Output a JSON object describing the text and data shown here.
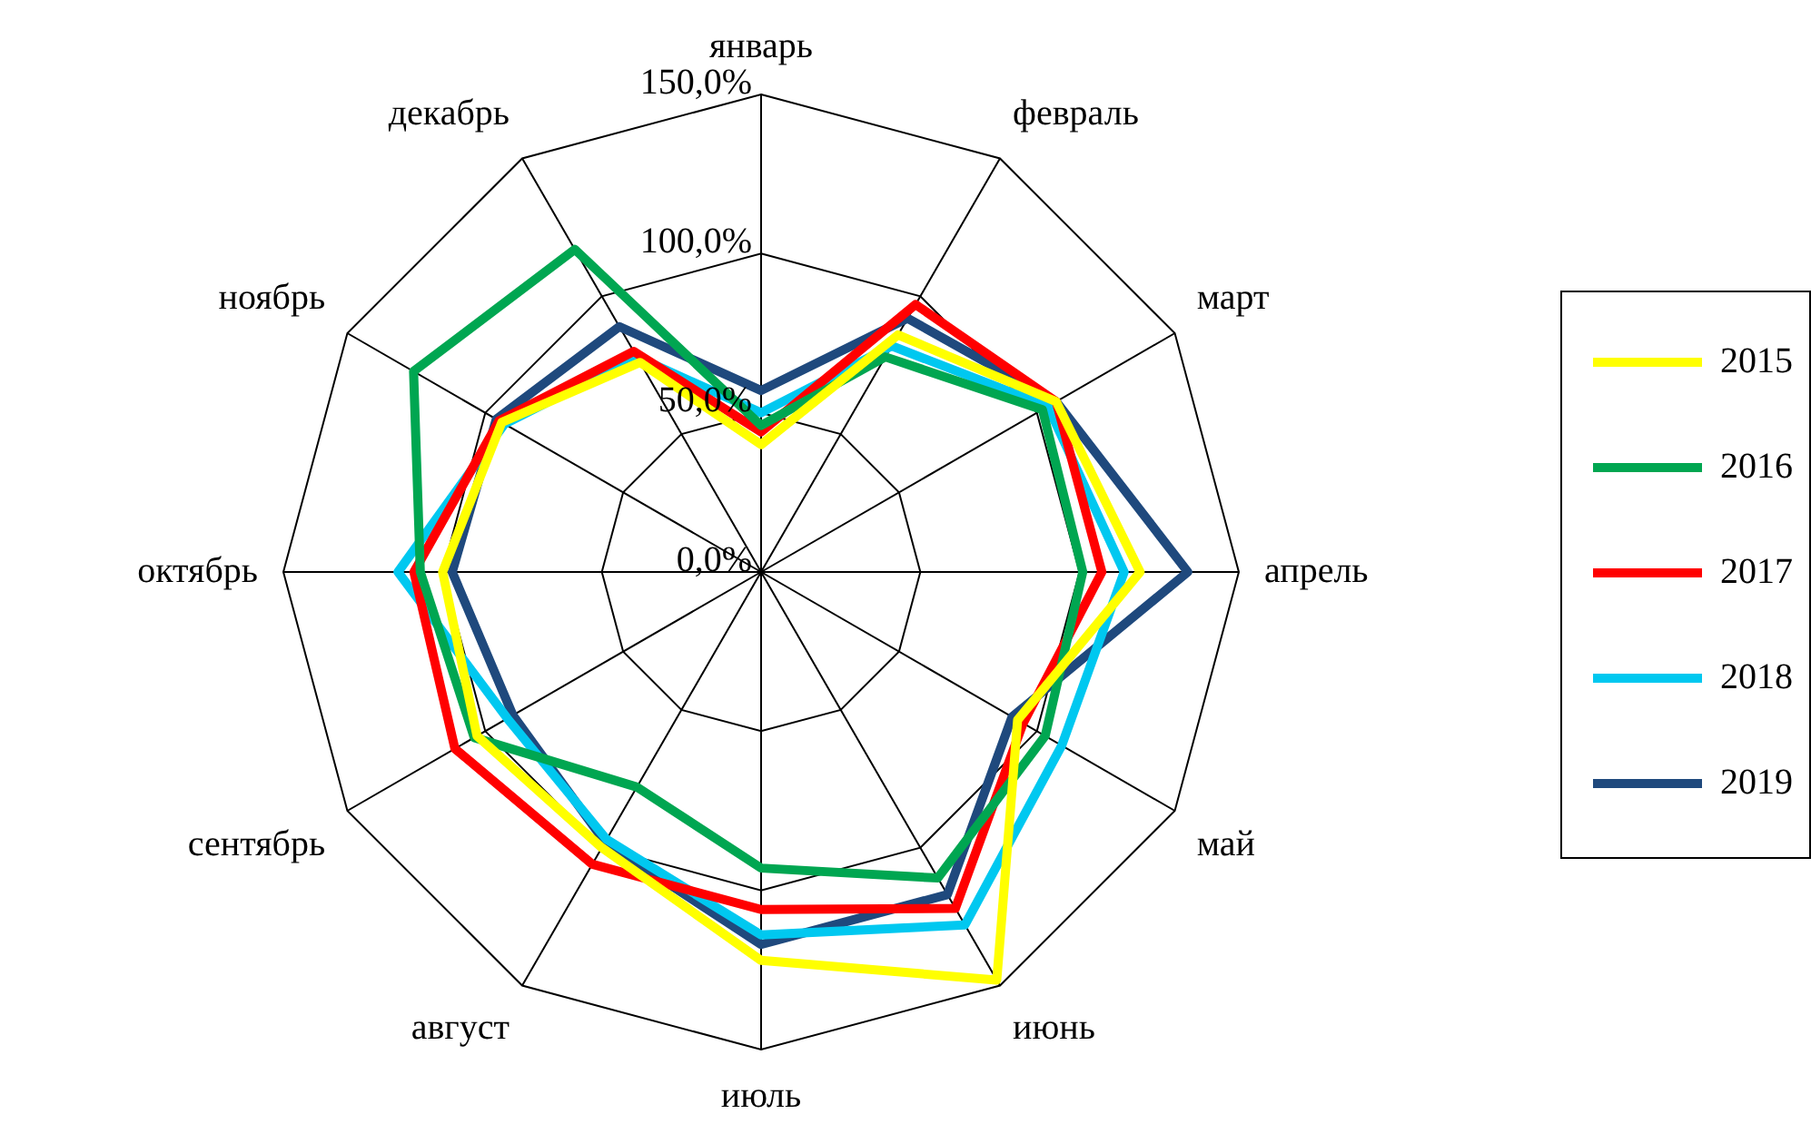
{
  "chart_data": {
    "type": "radar",
    "categories": [
      "январь",
      "февраль",
      "март",
      "апрель",
      "май",
      "июнь",
      "июль",
      "август",
      "сентябрь",
      "октябрь",
      "ноябрь",
      "декабрь"
    ],
    "series": [
      {
        "name": "2015",
        "color": "#ffff00",
        "values": [
          40,
          86,
          107,
          119,
          93,
          148,
          122,
          100,
          103,
          100,
          94,
          76
        ]
      },
      {
        "name": "2016",
        "color": "#00a651",
        "values": [
          46,
          78,
          102,
          101,
          103,
          111,
          93,
          78,
          104,
          107,
          126,
          117
        ]
      },
      {
        "name": "2017",
        "color": "#ff0000",
        "values": [
          44,
          97,
          107,
          107,
          95,
          122,
          106,
          106,
          111,
          109,
          95,
          80
        ]
      },
      {
        "name": "2018",
        "color": "#00c8f0",
        "values": [
          50,
          82,
          104,
          114,
          109,
          128,
          114,
          97,
          92,
          114,
          93,
          78
        ]
      },
      {
        "name": "2019",
        "color": "#1f497d",
        "values": [
          57,
          92,
          107,
          134,
          91,
          117,
          117,
          98,
          90,
          97,
          96,
          89
        ]
      }
    ],
    "ylim": [
      0,
      150
    ],
    "yticks": [
      {
        "value": 0,
        "label": "0,0%"
      },
      {
        "value": 50,
        "label": "50,0%"
      },
      {
        "value": 100,
        "label": "100,0%"
      },
      {
        "value": 150,
        "label": "150,0%"
      }
    ],
    "grid": true,
    "legend": "right",
    "marker": "none"
  }
}
